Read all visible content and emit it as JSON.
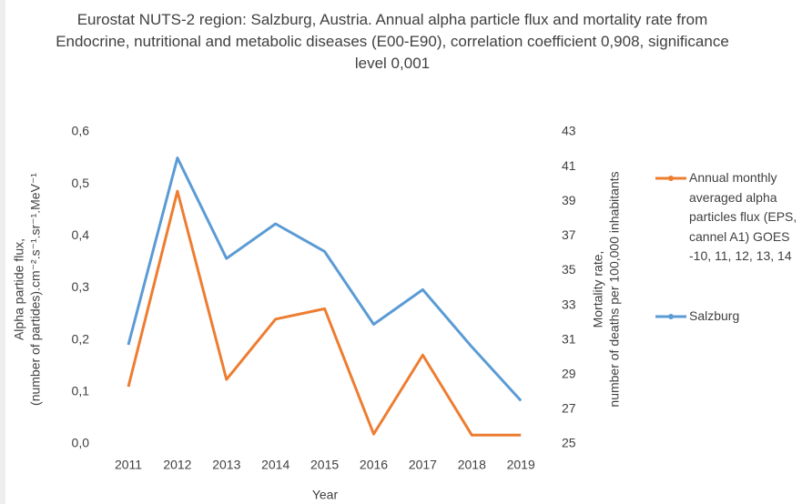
{
  "chart_data": {
    "type": "line",
    "title": "Eurostat NUTS-2 region: Salzburg, Austria. Annual alpha particle flux and mortality rate from Endocrine, nutritional and metabolic diseases (E00-E90), correlation coefficient 0,908, significance level 0,001",
    "xlabel": "Year",
    "ylabel": [
      "Alpha partide flux,",
      "(number of partides).cm⁻².s⁻¹.sr⁻¹.MeV⁻¹"
    ],
    "y2label": [
      "Mortality rate,",
      "number of deaths per 100,000 inhabitants"
    ],
    "categories": [
      "2011",
      "2012",
      "2013",
      "2014",
      "2015",
      "2016",
      "2017",
      "2018",
      "2019"
    ],
    "ylim": [
      0,
      0.6
    ],
    "yticks": [
      {
        "value": 0,
        "label": "0,0"
      },
      {
        "value": 0.1,
        "label": "0,1"
      },
      {
        "value": 0.2,
        "label": "0,2"
      },
      {
        "value": 0.3,
        "label": "0,3"
      },
      {
        "value": 0.4,
        "label": "0,4"
      },
      {
        "value": 0.5,
        "label": "0,5"
      },
      {
        "value": 0.6,
        "label": "0,6"
      }
    ],
    "y2lim": [
      25,
      43
    ],
    "y2ticks": [
      25,
      27,
      29,
      31,
      33,
      35,
      37,
      39,
      41,
      43
    ],
    "series": [
      {
        "name": "Annual monthly averaged alpha particles flux (EPS, cannel A1) GOES -10, 11, 12, 13, 14",
        "color": "#ed7d31",
        "axis": "y",
        "values": [
          0.11,
          0.486,
          0.124,
          0.24,
          0.26,
          0.019,
          0.171,
          0.017,
          0.017
        ]
      },
      {
        "name": "Salzburg",
        "color": "#5b9bd5",
        "axis": "y2",
        "values": [
          30.72,
          41.5,
          35.7,
          37.7,
          36.1,
          31.9,
          33.9,
          30.6,
          27.5
        ]
      }
    ],
    "legend": "right"
  }
}
